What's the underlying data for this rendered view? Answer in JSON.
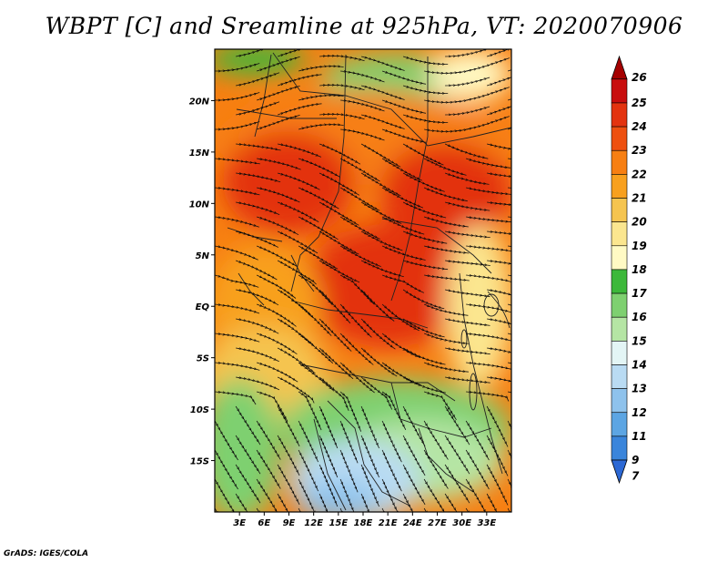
{
  "title": "WBPT [C] and Sreamline at 925hPa, VT: 2020070906",
  "credit": "GrADS: IGES/COLA",
  "map": {
    "lon_range": [
      0,
      36
    ],
    "lat_range": [
      -20,
      25
    ],
    "lon_ticks": [
      {
        "value": 3,
        "label": "3E"
      },
      {
        "value": 6,
        "label": "6E"
      },
      {
        "value": 9,
        "label": "9E"
      },
      {
        "value": 12,
        "label": "12E"
      },
      {
        "value": 15,
        "label": "15E"
      },
      {
        "value": 18,
        "label": "18E"
      },
      {
        "value": 21,
        "label": "21E"
      },
      {
        "value": 24,
        "label": "24E"
      },
      {
        "value": 27,
        "label": "27E"
      },
      {
        "value": 30,
        "label": "30E"
      },
      {
        "value": 33,
        "label": "33E"
      }
    ],
    "lat_ticks": [
      {
        "value": 20,
        "label": "20N"
      },
      {
        "value": 15,
        "label": "15N"
      },
      {
        "value": 10,
        "label": "10N"
      },
      {
        "value": 5,
        "label": "5N"
      },
      {
        "value": 0,
        "label": "EQ"
      },
      {
        "value": -5,
        "label": "5S"
      },
      {
        "value": -10,
        "label": "10S"
      },
      {
        "value": -15,
        "label": "15S"
      }
    ]
  },
  "colorbar": {
    "labels": [
      "26",
      "25",
      "24",
      "23",
      "22",
      "21",
      "20",
      "19",
      "18",
      "17",
      "16",
      "15",
      "14",
      "13",
      "12",
      "11",
      "9",
      "7"
    ],
    "colors": [
      "#a50000",
      "#c80d0d",
      "#e3330f",
      "#ee5010",
      "#f77f12",
      "#f8a01e",
      "#f5c44f",
      "#fbe68f",
      "#fffac4",
      "#3cb83a",
      "#7ed070",
      "#b5e5a4",
      "#e3f5f5",
      "#b9dbf3",
      "#8ec2ec",
      "#5ca5e3",
      "#3a85db",
      "#2c68d4"
    ]
  },
  "regions": [
    {
      "name": "sahara-green",
      "color": "#7ed070",
      "lon": 22,
      "lat": 22,
      "rx": 9,
      "ry": 2.5
    },
    {
      "name": "north-green",
      "color": "#3cb83a",
      "lon": 5,
      "lat": 24,
      "rx": 6,
      "ry": 1.5
    },
    {
      "name": "ne-yellow",
      "color": "#fffac4",
      "lon": 31,
      "lat": 22.5,
      "rx": 5,
      "ry": 2.5
    },
    {
      "name": "north-orange",
      "color": "#f77f12",
      "lon": 18,
      "lat": 16,
      "rx": 17,
      "ry": 5
    },
    {
      "name": "hot-red-west",
      "color": "#e3330f",
      "lon": 9,
      "lat": 12,
      "rx": 8,
      "ry": 5
    },
    {
      "name": "hot-red-east",
      "color": "#e3330f",
      "lon": 28,
      "lat": 11,
      "rx": 8,
      "ry": 5
    },
    {
      "name": "central-red",
      "color": "#e3330f",
      "lon": 21,
      "lat": 2,
      "rx": 10,
      "ry": 6
    },
    {
      "name": "west-orange",
      "color": "#f8a01e",
      "lon": 6,
      "lat": 0,
      "rx": 7,
      "ry": 6
    },
    {
      "name": "sw-yellow",
      "color": "#f5c44f",
      "lon": 6,
      "lat": -7,
      "rx": 8,
      "ry": 5
    },
    {
      "name": "east-yellow",
      "color": "#fbe68f",
      "lon": 32,
      "lat": 0,
      "rx": 4,
      "ry": 8
    },
    {
      "name": "south-green",
      "color": "#7ed070",
      "lon": 22,
      "lat": -12,
      "rx": 14,
      "ry": 5
    },
    {
      "name": "sw-green",
      "color": "#7ed070",
      "lon": 3,
      "lat": -14,
      "rx": 5,
      "ry": 7
    },
    {
      "name": "south-lightgreen",
      "color": "#b5e5a4",
      "lon": 25,
      "lat": -15,
      "rx": 10,
      "ry": 4
    },
    {
      "name": "south-blue",
      "color": "#b9dbf3",
      "lon": 17,
      "lat": -17,
      "rx": 8,
      "ry": 4
    },
    {
      "name": "south-darkblue",
      "color": "#8ec2ec",
      "lon": 15,
      "lat": -19,
      "rx": 5,
      "ry": 2
    }
  ]
}
